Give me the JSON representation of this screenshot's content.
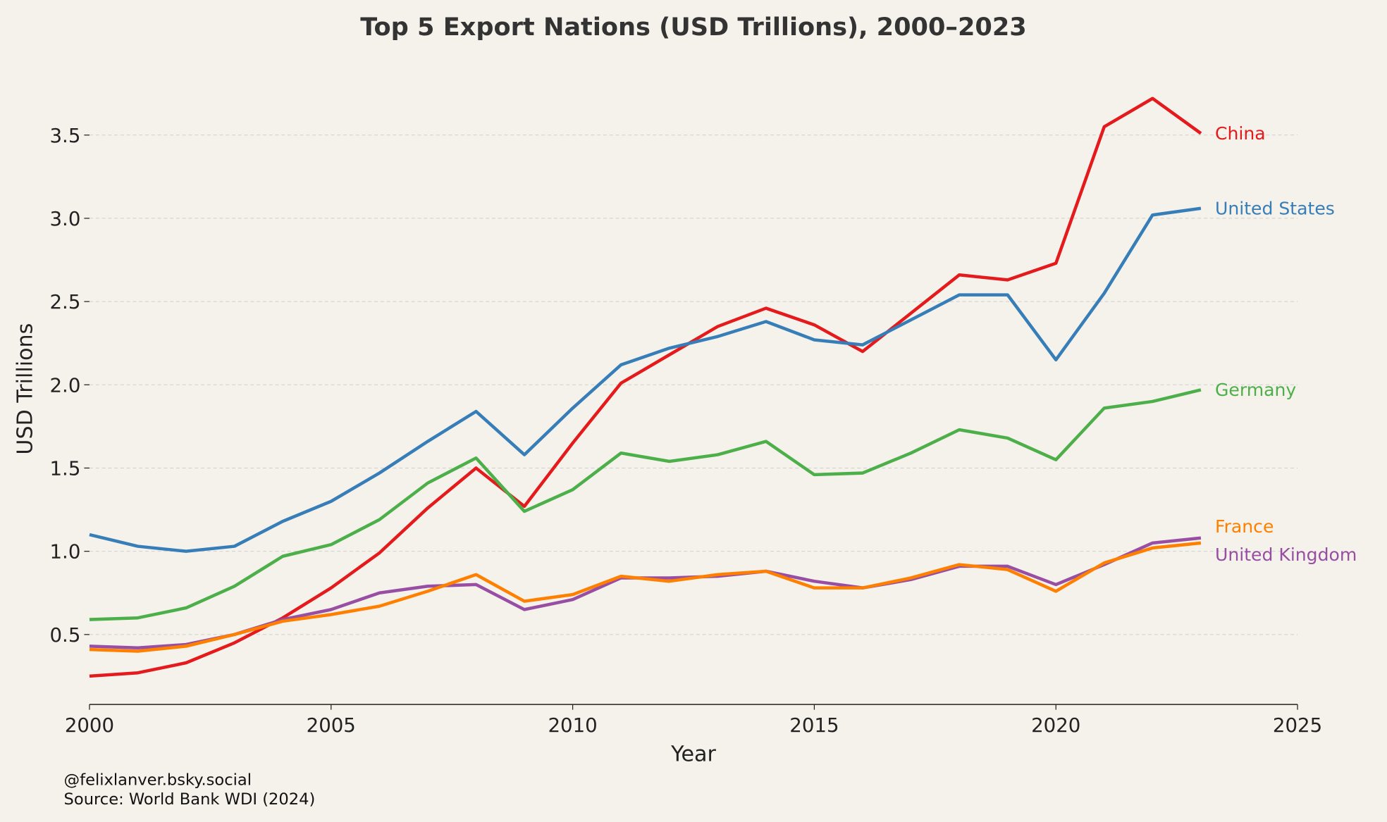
{
  "chart_data": {
    "type": "line",
    "title": "Top 5 Export Nations (USD Trillions), 2000–2023",
    "xlabel": "Year",
    "ylabel": "USD Trillions",
    "xlim": [
      2000,
      2025
    ],
    "ylim": [
      0.08,
      3.86
    ],
    "xticks": [
      "2000",
      "2005",
      "2010",
      "2015",
      "2020",
      "2025"
    ],
    "yticks": [
      "0.5",
      "1.0",
      "1.5",
      "2.0",
      "2.5",
      "3.0",
      "3.5"
    ],
    "grid": "horizontal dashed",
    "legend": "direct labels at line ends",
    "x": [
      2000,
      2001,
      2002,
      2003,
      2004,
      2005,
      2006,
      2007,
      2008,
      2009,
      2010,
      2011,
      2012,
      2013,
      2014,
      2015,
      2016,
      2017,
      2018,
      2019,
      2020,
      2021,
      2022,
      2023
    ],
    "series": [
      {
        "name": "China",
        "color": "#e41a1c",
        "values": [
          0.25,
          0.27,
          0.33,
          0.45,
          0.6,
          0.78,
          0.99,
          1.26,
          1.5,
          1.27,
          1.65,
          2.01,
          2.18,
          2.35,
          2.46,
          2.36,
          2.2,
          2.43,
          2.66,
          2.63,
          2.73,
          3.55,
          3.72,
          3.51
        ]
      },
      {
        "name": "United States",
        "color": "#377eb8",
        "values": [
          1.1,
          1.03,
          1.0,
          1.03,
          1.18,
          1.3,
          1.47,
          1.66,
          1.84,
          1.58,
          1.86,
          2.12,
          2.22,
          2.29,
          2.38,
          2.27,
          2.24,
          2.39,
          2.54,
          2.54,
          2.15,
          2.55,
          3.02,
          3.06
        ]
      },
      {
        "name": "Germany",
        "color": "#4daf4a",
        "values": [
          0.59,
          0.6,
          0.66,
          0.79,
          0.97,
          1.04,
          1.19,
          1.41,
          1.56,
          1.24,
          1.37,
          1.59,
          1.54,
          1.58,
          1.66,
          1.46,
          1.47,
          1.59,
          1.73,
          1.68,
          1.55,
          1.86,
          1.9,
          1.97
        ]
      },
      {
        "name": "United Kingdom",
        "color": "#984ea3",
        "values": [
          0.43,
          0.42,
          0.44,
          0.5,
          0.59,
          0.65,
          0.75,
          0.79,
          0.8,
          0.65,
          0.71,
          0.84,
          0.84,
          0.85,
          0.88,
          0.82,
          0.78,
          0.83,
          0.91,
          0.91,
          0.8,
          0.92,
          1.05,
          1.08
        ]
      },
      {
        "name": "France",
        "color": "#ff7f00",
        "values": [
          0.41,
          0.4,
          0.43,
          0.5,
          0.58,
          0.62,
          0.67,
          0.76,
          0.86,
          0.7,
          0.74,
          0.85,
          0.82,
          0.86,
          0.88,
          0.78,
          0.78,
          0.84,
          0.92,
          0.89,
          0.76,
          0.93,
          1.02,
          1.05
        ]
      }
    ]
  },
  "footer": {
    "credit": "@felixlanver.bsky.social",
    "source": "Source: World Bank WDI (2024)"
  }
}
